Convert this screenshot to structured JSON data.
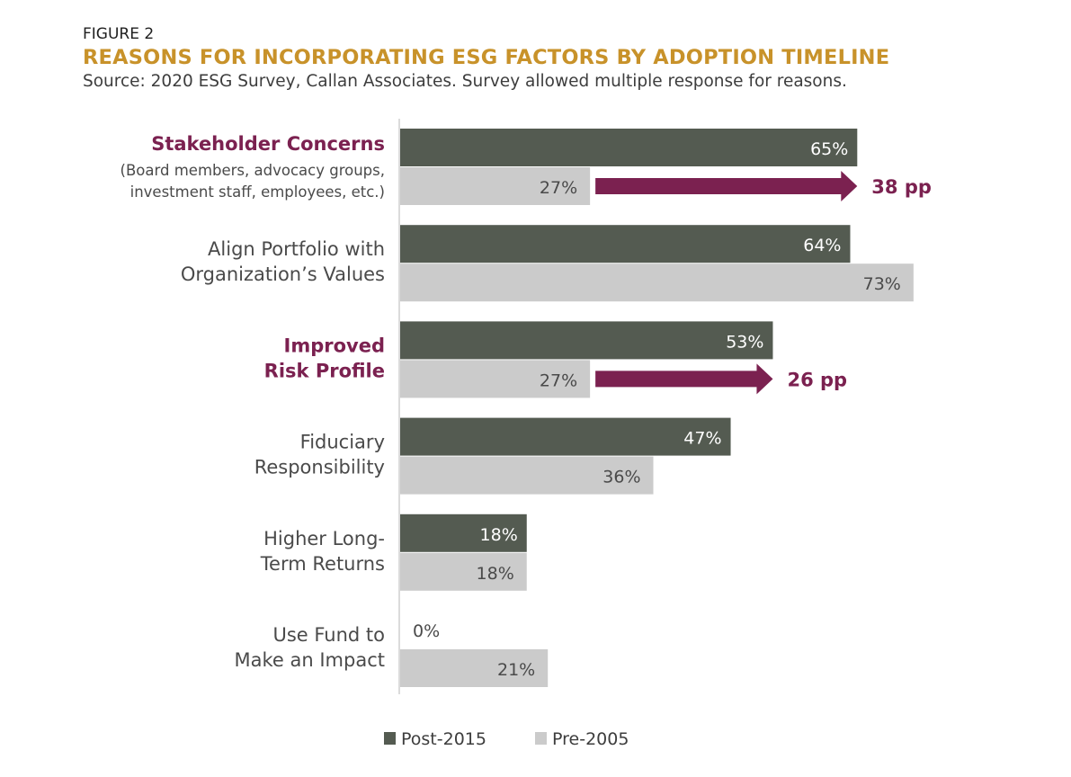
{
  "figure_label": "FIGURE 2",
  "title": "REASONS FOR INCORPORATING ESG FACTORS BY ADOPTION TIMELINE",
  "subtitle": "Source: 2020 ESG Survey, Callan Associates. Survey allowed multiple response for reasons.",
  "colors": {
    "post": "#545b51",
    "pre": "#cbcbcb",
    "accent": "#7b2150",
    "title": "#c8922a"
  },
  "chart_data": {
    "type": "bar",
    "orientation": "horizontal",
    "categories": [
      {
        "lines": [
          "Stakeholder Concerns"
        ],
        "sublines": [
          "(Board members, advocacy groups,",
          "investment staff, employees, etc.)"
        ],
        "highlight": true
      },
      {
        "lines": [
          "Align Portfolio with",
          "Organization’s Values"
        ],
        "sublines": [],
        "highlight": false
      },
      {
        "lines": [
          "Improved",
          "Risk Profile"
        ],
        "sublines": [],
        "highlight": true
      },
      {
        "lines": [
          "Fiduciary",
          "Responsibility"
        ],
        "sublines": [],
        "highlight": false
      },
      {
        "lines": [
          "Higher Long-",
          "Term Returns"
        ],
        "sublines": [],
        "highlight": false
      },
      {
        "lines": [
          "Use Fund to",
          "Make an Impact"
        ],
        "sublines": [],
        "highlight": false
      }
    ],
    "series": [
      {
        "name": "Post-2015",
        "values": [
          65,
          64,
          53,
          47,
          18,
          0
        ],
        "labels": [
          "65%",
          "64%",
          "53%",
          "47%",
          "18%",
          "0%"
        ]
      },
      {
        "name": "Pre-2005",
        "values": [
          27,
          73,
          27,
          36,
          18,
          21
        ],
        "labels": [
          "27%",
          "73%",
          "27%",
          "36%",
          "18%",
          "21%"
        ]
      }
    ],
    "annotations": [
      {
        "category_index": 0,
        "from": 27,
        "to": 65,
        "label": "38 pp"
      },
      {
        "category_index": 2,
        "from": 27,
        "to": 53,
        "label": "26 pp"
      }
    ],
    "xlim": [
      0,
      100
    ],
    "grid": false,
    "legend": "bottom"
  }
}
